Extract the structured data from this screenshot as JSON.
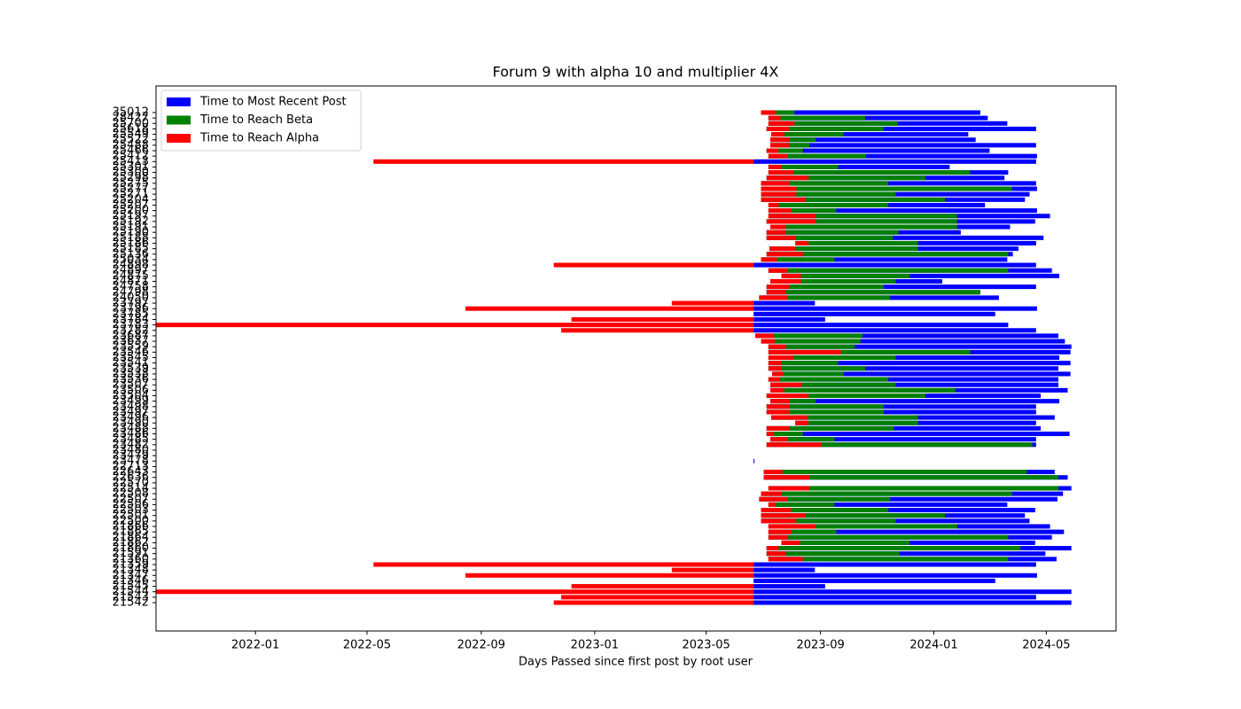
{
  "chart_data": {
    "type": "barh-range",
    "title": "Forum 9 with alpha 10 and multiplier 4X",
    "xlabel": "Days Passed since first post by root user",
    "legend": "upper left",
    "xlim": [
      "2021-09-16",
      "2024-07-15"
    ],
    "xticks": [
      {
        "value": "2022-01-01",
        "label": "2022-01"
      },
      {
        "value": "2022-05-01",
        "label": "2022-05"
      },
      {
        "value": "2022-09-01",
        "label": "2022-09"
      },
      {
        "value": "2023-01-01",
        "label": "2023-01"
      },
      {
        "value": "2023-05-01",
        "label": "2023-05"
      },
      {
        "value": "2023-09-01",
        "label": "2023-09"
      },
      {
        "value": "2024-01-01",
        "label": "2024-01"
      },
      {
        "value": "2024-05-01",
        "label": "2024-05"
      }
    ],
    "categories": [
      "35012",
      "28427",
      "25700",
      "25618",
      "25549",
      "25522",
      "25488",
      "25466",
      "25412",
      "25413",
      "25301",
      "25300",
      "25298",
      "25275",
      "25277",
      "25271",
      "25204",
      "25207",
      "25200",
      "25197",
      "25192",
      "25191",
      "25190",
      "25188",
      "25186",
      "25185",
      "25136",
      "25034",
      "24898",
      "24897",
      "24875",
      "24871",
      "24758",
      "24798",
      "24050",
      "23797",
      "23796",
      "23785",
      "23784",
      "23783",
      "23782",
      "23687",
      "23637",
      "23559",
      "23546",
      "23545",
      "23541",
      "23539",
      "23538",
      "23536",
      "23507",
      "23506",
      "23504",
      "23499",
      "23498",
      "23497",
      "23496",
      "23490",
      "23488",
      "23486",
      "23485",
      "23482",
      "23480",
      "23479",
      "23478",
      "22713",
      "22643",
      "22636",
      "22570",
      "22514",
      "22508",
      "22507",
      "22506",
      "22503",
      "22501",
      "22500",
      "21866",
      "21865",
      "21864",
      "21862",
      "21860",
      "21591",
      "21360",
      "21359",
      "21348",
      "21347",
      "21346",
      "21545",
      "21544",
      "21543",
      "21542"
    ],
    "starts": [
      "2023-06-29",
      "2023-07-07",
      "2023-07-07",
      "2023-07-05",
      "2023-07-10",
      "2023-07-09",
      "2023-07-09",
      "2023-07-05",
      "2023-07-07",
      "2023-06-21",
      "2023-07-07",
      "2023-07-07",
      "2023-07-05",
      "2023-06-29",
      "2023-06-29",
      "2023-06-29",
      "2023-06-29",
      "2023-07-07",
      "2023-07-07",
      "2023-07-07",
      "2023-07-05",
      "2023-07-09",
      "2023-07-05",
      "2023-07-05",
      "2023-08-05",
      "2023-07-08",
      "2023-07-05",
      "2023-06-29",
      "2023-06-21",
      "2023-07-07",
      "2023-07-21",
      "2023-07-09",
      "2023-07-05",
      "2023-07-05",
      "2023-06-27",
      "2023-06-21",
      "2023-06-21",
      "2023-06-21",
      "2023-06-21",
      "2023-06-21",
      "2023-06-21",
      "2023-06-23",
      "2023-06-29",
      "2023-07-07",
      "2023-07-07",
      "2023-07-07",
      "2023-07-07",
      "2023-07-07",
      "2023-07-11",
      "2023-07-07",
      "2023-07-09",
      "2023-07-09",
      "2023-07-05",
      "2023-07-09",
      "2023-07-05",
      "2023-07-05",
      "2023-07-10",
      "2023-08-05",
      "2023-07-05",
      "2023-07-05",
      "2023-07-09",
      "2023-07-05",
      null,
      null,
      "2023-06-21",
      null,
      "2023-07-02",
      "2023-07-02",
      null,
      "2023-07-07",
      "2023-06-29",
      "2023-06-27",
      "2023-07-07",
      "2023-06-29",
      "2023-06-29",
      "2023-06-29",
      "2023-07-07",
      "2023-07-07",
      "2023-07-07",
      "2023-07-21",
      "2023-07-05",
      "2023-07-05",
      "2023-07-07",
      "2023-06-21",
      "2023-06-21",
      "2023-06-21",
      "2023-06-21",
      "2023-06-21",
      "2023-06-21",
      "2023-06-21",
      "2023-06-21"
    ],
    "series": [
      {
        "name": "Time to Most Recent Post",
        "color": "#0000ff",
        "values": [
          "2024-02-20",
          "2024-02-28",
          "2024-03-20",
          "2024-04-20",
          "2024-02-07",
          "2024-02-15",
          "2024-04-20",
          "2024-03-01",
          "2024-04-21",
          "2024-04-20",
          "2024-01-18",
          "2024-03-21",
          "2024-03-17",
          "2024-04-20",
          "2024-04-21",
          "2024-04-13",
          "2024-04-08",
          "2024-02-25",
          "2024-04-21",
          "2024-05-05",
          "2024-04-19",
          "2024-03-23",
          "2024-01-30",
          "2024-04-28",
          "2024-04-20",
          "2024-04-01",
          "2024-03-26",
          "2024-03-20",
          "2024-04-20",
          "2024-05-07",
          "2024-05-15",
          "2024-01-10",
          "2024-04-20",
          "2024-02-20",
          "2024-03-11",
          "2023-08-26",
          "2024-04-21",
          "2024-03-07",
          "2023-09-06",
          "2024-03-21",
          "2024-04-20",
          "2024-05-14",
          "2024-05-21",
          "2024-05-28",
          "2024-05-27",
          "2024-05-15",
          "2024-05-27",
          "2024-05-14",
          "2024-05-27",
          "2024-05-14",
          "2024-05-14",
          "2024-05-24",
          "2024-04-25",
          "2024-05-15",
          "2024-04-20",
          "2024-04-20",
          "2024-05-10",
          "2024-04-20",
          "2024-04-25",
          "2024-05-26",
          "2024-04-20",
          "2024-04-20",
          null,
          null,
          "2023-06-22",
          null,
          "2024-05-10",
          "2024-05-24",
          null,
          "2024-05-28",
          "2024-05-19",
          "2024-05-13",
          "2024-03-20",
          "2024-04-19",
          "2024-04-08",
          "2024-04-13",
          "2024-05-05",
          "2024-05-20",
          "2024-05-07",
          "2024-04-19",
          "2024-05-28",
          "2024-04-30",
          "2024-05-12",
          "2024-04-20",
          "2023-08-26",
          "2024-04-21",
          "2024-03-07",
          "2023-09-06",
          "2024-05-28",
          "2024-04-20",
          "2024-05-28"
        ]
      },
      {
        "name": "Time to Reach Beta",
        "color": "#008000",
        "values": [
          "2023-08-04",
          "2023-10-19",
          "2023-11-23",
          "2023-11-08",
          "2023-09-26",
          "2023-08-27",
          "2023-08-20",
          "2023-08-13",
          "2023-10-20",
          null,
          "2023-09-20",
          "2024-02-09",
          "2023-12-23",
          "2023-11-13",
          "2024-03-25",
          "2023-11-21",
          "2024-01-13",
          "2023-11-13",
          "2023-09-18",
          "2024-01-26",
          "2024-01-26",
          "2024-01-26",
          "2023-11-24",
          "2023-11-18",
          "2023-12-15",
          "2023-12-15",
          "2024-03-21",
          "2023-09-16",
          null,
          "2024-03-21",
          "2023-12-06",
          "2023-11-21",
          "2023-11-08",
          "2024-02-20",
          "2023-11-15",
          null,
          null,
          null,
          null,
          null,
          null,
          "2023-10-16",
          "2023-10-14",
          "2023-10-08",
          "2024-02-09",
          "2023-11-21",
          "2023-09-20",
          "2023-10-19",
          "2023-09-26",
          "2023-11-13",
          "2023-11-21",
          "2024-01-24",
          "2023-12-23",
          "2023-08-27",
          "2023-11-08",
          "2023-11-08",
          "2023-12-15",
          "2023-12-15",
          "2023-11-19",
          "2023-08-13",
          "2023-09-16",
          "2024-04-16",
          null,
          null,
          null,
          null,
          "2024-04-10",
          "2024-05-14",
          null,
          "2024-05-14",
          "2024-03-25",
          "2023-11-15",
          "2023-09-16",
          "2023-11-13",
          "2024-01-13",
          "2023-11-21",
          "2024-01-26",
          "2023-09-18",
          "2024-03-21",
          "2023-12-06",
          "2024-04-03",
          "2023-11-25",
          "2024-03-21",
          null,
          null,
          null,
          null,
          null,
          null,
          null,
          null
        ]
      },
      {
        "name": "Time to Reach Alpha",
        "color": "#ff0000",
        "values": [
          "2023-07-15",
          "2023-07-20",
          "2023-08-04",
          "2023-07-29",
          "2023-07-24",
          "2023-07-30",
          "2023-07-29",
          "2023-07-18",
          "2023-07-27",
          "2022-05-08",
          "2023-07-21",
          "2023-08-03",
          "2023-08-19",
          "2023-07-30",
          "2023-08-06",
          "2023-08-06",
          "2023-08-16",
          "2023-07-18",
          "2023-08-01",
          "2023-08-27",
          "2023-08-27",
          "2023-07-26",
          "2023-07-26",
          "2023-08-05",
          "2023-08-19",
          "2023-08-05",
          "2023-08-13",
          "2023-07-16",
          "2022-11-18",
          "2023-07-27",
          "2023-08-11",
          "2023-08-11",
          "2023-07-29",
          "2023-07-26",
          "2023-07-27",
          "2023-03-25",
          "2022-08-15",
          null,
          "2022-12-07",
          "2021-09-16",
          "2022-11-26",
          "2023-07-13",
          "2023-07-14",
          "2023-07-26",
          "2023-09-23",
          "2023-08-03",
          "2023-07-21",
          "2023-07-21",
          "2023-07-23",
          "2023-07-19",
          "2023-08-12",
          "2023-07-24",
          "2023-08-19",
          "2023-07-30",
          "2023-07-29",
          "2023-07-29",
          "2023-08-18",
          "2023-08-19",
          "2023-07-29",
          "2023-07-13",
          "2023-07-27",
          "2023-09-02",
          null,
          null,
          null,
          null,
          "2023-07-22",
          "2023-08-20",
          null,
          "2023-08-20",
          "2023-07-21",
          "2023-07-27",
          "2023-07-15",
          "2023-07-31",
          "2023-08-16",
          "2023-08-06",
          "2023-08-27",
          "2023-08-01",
          "2023-07-28",
          "2023-08-10",
          "2023-07-18",
          "2023-07-26",
          "2023-08-13",
          "2022-05-08",
          "2023-03-25",
          "2022-08-15",
          null,
          "2022-12-07",
          "2021-09-16",
          "2022-11-26",
          "2022-11-18"
        ]
      }
    ]
  }
}
